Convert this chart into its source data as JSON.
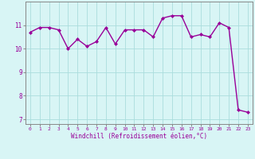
{
  "x": [
    0,
    1,
    2,
    3,
    4,
    5,
    6,
    7,
    8,
    9,
    10,
    11,
    12,
    13,
    14,
    15,
    16,
    17,
    18,
    19,
    20,
    21,
    22,
    23
  ],
  "y": [
    10.7,
    10.9,
    10.9,
    10.8,
    10.0,
    10.4,
    10.1,
    10.3,
    10.9,
    10.2,
    10.8,
    10.8,
    10.8,
    10.5,
    11.3,
    11.4,
    11.4,
    10.5,
    10.6,
    10.5,
    11.1,
    10.9,
    7.4,
    7.3
  ],
  "line_color": "#990099",
  "marker": "D",
  "marker_size": 2.0,
  "linewidth": 1.0,
  "bg_color": "#d8f5f5",
  "grid_color": "#aadddd",
  "xlabel": "Windchill (Refroidissement éolien,°C)",
  "xlabel_color": "#990099",
  "tick_color": "#990099",
  "spine_color": "#888888",
  "xlim": [
    -0.5,
    23.5
  ],
  "ylim": [
    6.8,
    12.0
  ],
  "yticks": [
    7,
    8,
    9,
    10,
    11
  ],
  "xticks": [
    0,
    1,
    2,
    3,
    4,
    5,
    6,
    7,
    8,
    9,
    10,
    11,
    12,
    13,
    14,
    15,
    16,
    17,
    18,
    19,
    20,
    21,
    22,
    23
  ]
}
